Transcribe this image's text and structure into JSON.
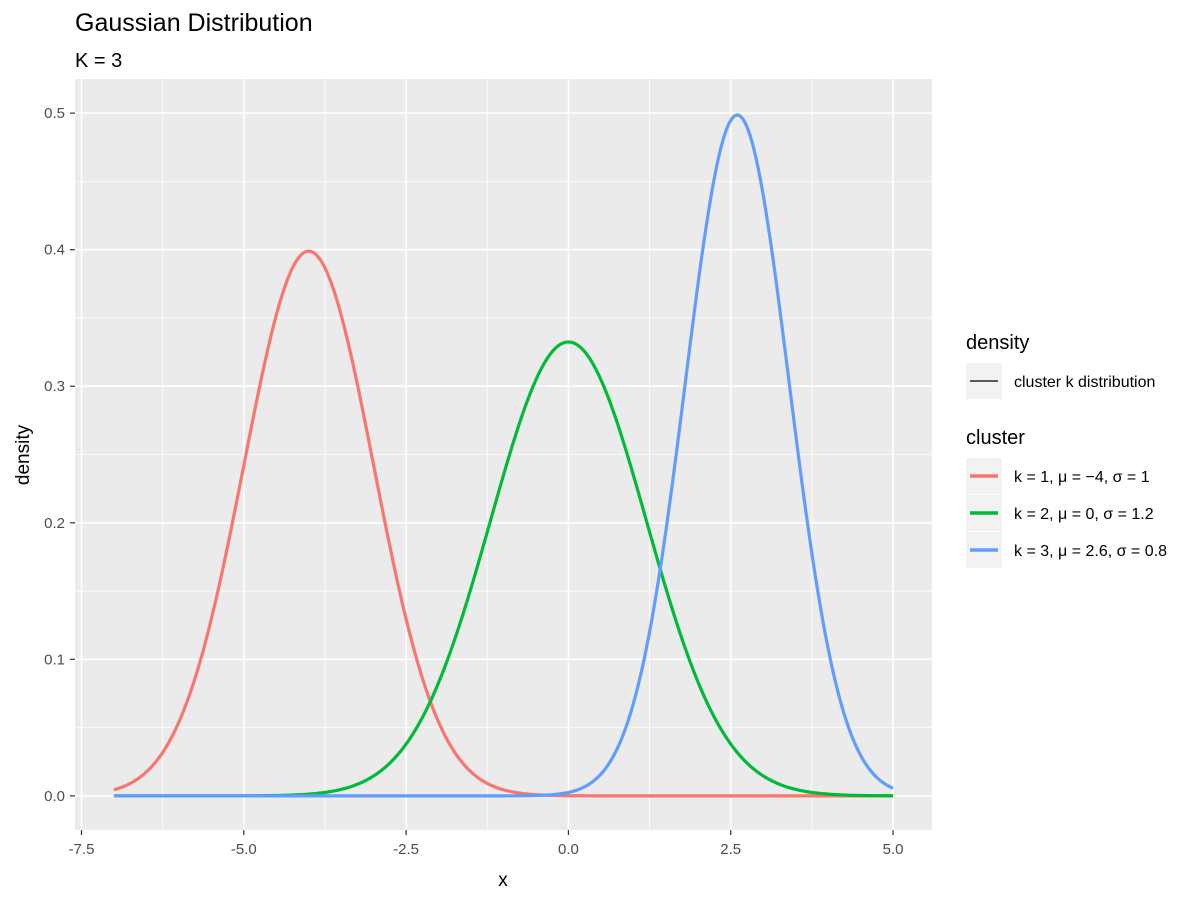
{
  "chart_data": {
    "type": "line",
    "title": "Gaussian Distribution",
    "subtitle": "K = 3",
    "xlabel": "x",
    "ylabel": "density",
    "xlim": [
      -7.6,
      5.6
    ],
    "ylim": [
      -0.025,
      0.525
    ],
    "x_ticks": [
      -7.5,
      -5.0,
      -2.5,
      0.0,
      2.5,
      5.0
    ],
    "x_tick_labels": [
      "-7.5",
      "-5.0",
      "-2.5",
      "0.0",
      "2.5",
      "5.0"
    ],
    "y_ticks": [
      0.0,
      0.1,
      0.2,
      0.3,
      0.4,
      0.5
    ],
    "y_tick_labels": [
      "0.0",
      "0.1",
      "0.2",
      "0.3",
      "0.4",
      "0.5"
    ],
    "x_range_plotted": [
      -7,
      5
    ],
    "grid": true,
    "panel_background": "#ebebeb",
    "grid_color": "#ffffff",
    "legend_position": "right",
    "legends": [
      {
        "title": "density",
        "entries": [
          {
            "label": "cluster k distribution",
            "color": "#000000"
          }
        ]
      },
      {
        "title": "cluster",
        "entries": [
          {
            "label": "k = 1, μ = −4, σ = 1",
            "color": "#F8766D"
          },
          {
            "label": "k = 2, μ = 0, σ = 1.2",
            "color": "#00BA38"
          },
          {
            "label": "k = 3, μ = 2.6, σ = 0.8",
            "color": "#619CFF"
          }
        ]
      }
    ],
    "series": [
      {
        "name": "k = 1, μ = −4, σ = 1",
        "mu": -4,
        "sigma": 1,
        "color": "#F8766D",
        "x": [
          -7,
          -6.5,
          -6,
          -5.5,
          -5,
          -4.5,
          -4,
          -3.5,
          -3,
          -2.5,
          -2,
          -1.5,
          -1,
          -0.5,
          0,
          1,
          2,
          3,
          4,
          5
        ],
        "y": [
          0.0044,
          0.0175,
          0.054,
          0.1295,
          0.242,
          0.3521,
          0.3989,
          0.3521,
          0.242,
          0.1295,
          0.054,
          0.0175,
          0.0044,
          0.0009,
          0.0001,
          0,
          0,
          0,
          0,
          0
        ]
      },
      {
        "name": "k = 2, μ = 0, σ = 1.2",
        "mu": 0,
        "sigma": 1.2,
        "color": "#00BA38",
        "x": [
          -7,
          -6,
          -5,
          -4,
          -3,
          -2.5,
          -2,
          -1.5,
          -1,
          -0.5,
          0,
          0.5,
          1,
          1.5,
          2,
          2.5,
          3,
          4,
          5
        ],
        "y": [
          0,
          0,
          0.0001,
          0.0013,
          0.0146,
          0.0376,
          0.0829,
          0.1527,
          0.2349,
          0.3017,
          0.3324,
          0.3017,
          0.2349,
          0.1527,
          0.0829,
          0.0376,
          0.0146,
          0.0013,
          0.0001
        ]
      },
      {
        "name": "k = 3, μ = 2.6, σ = 0.8",
        "mu": 2.6,
        "sigma": 0.8,
        "color": "#619CFF",
        "x": [
          -7,
          -5,
          -3,
          -1,
          0,
          0.5,
          1,
          1.5,
          2,
          2.6,
          3,
          3.5,
          4,
          4.5,
          5
        ],
        "y": [
          0,
          0,
          0,
          0,
          0.0024,
          0.0158,
          0.0673,
          0.1947,
          0.3769,
          0.4987,
          0.4412,
          0.2643,
          0.1083,
          0.0282,
          0.0056
        ]
      }
    ]
  }
}
